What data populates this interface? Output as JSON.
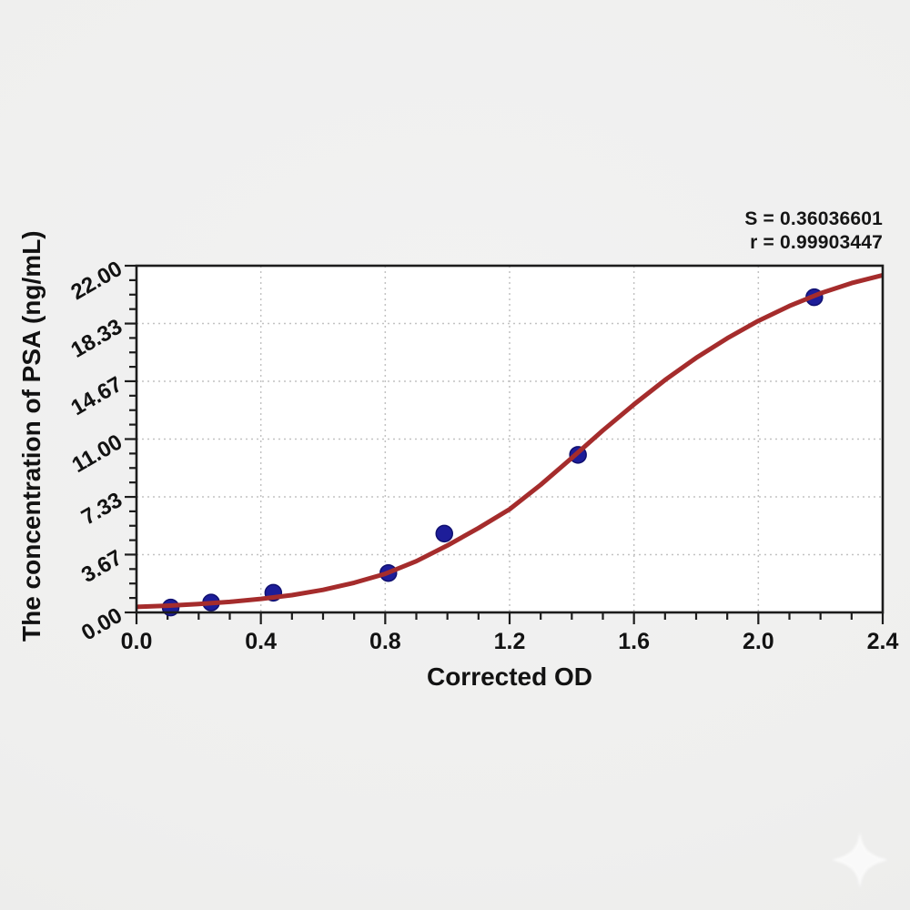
{
  "chart_data": {
    "type": "scatter",
    "title": "",
    "xlabel": "Corrected OD",
    "ylabel": "The concentration of PSA (ng/mL)",
    "xlim": [
      0.0,
      2.4
    ],
    "ylim": [
      0.0,
      22.0
    ],
    "grid": true,
    "legend_position": "none",
    "x_tick_labels": [
      "0.0",
      "0.4",
      "0.8",
      "1.2",
      "1.6",
      "2.0",
      "2.4"
    ],
    "x_tick_values": [
      0.0,
      0.4,
      0.8,
      1.2,
      1.6,
      2.0,
      2.4
    ],
    "y_tick_labels": [
      "0.00",
      "3.67",
      "7.33",
      "11.00",
      "14.67",
      "18.33",
      "22.00"
    ],
    "y_tick_values": [
      0.0,
      3.67,
      7.33,
      11.0,
      14.67,
      18.33,
      22.0
    ],
    "minor_ticks_between_majors": 3,
    "annotations": {
      "s_line": "S = 0.36036601",
      "r_line": "r = 0.99903447"
    },
    "series": [
      {
        "name": "standard points",
        "type": "scatter",
        "color": "#1d1d99",
        "edge_color": "#101070",
        "marker_size": 9,
        "x": [
          0.11,
          0.24,
          0.44,
          0.81,
          0.99,
          1.42,
          2.18
        ],
        "y": [
          0.31,
          0.63,
          1.25,
          2.5,
          5.0,
          10.0,
          20.0
        ]
      },
      {
        "name": "4PL standard curve",
        "type": "line",
        "color": "#a52c2c",
        "width": 5,
        "x": [
          0.0,
          0.1,
          0.2,
          0.3,
          0.4,
          0.5,
          0.6,
          0.7,
          0.8,
          0.9,
          1.0,
          1.1,
          1.2,
          1.3,
          1.4,
          1.5,
          1.6,
          1.7,
          1.8,
          1.9,
          2.0,
          2.1,
          2.2,
          2.3,
          2.4
        ],
        "y": [
          0.35,
          0.43,
          0.53,
          0.67,
          0.86,
          1.1,
          1.43,
          1.88,
          2.45,
          3.25,
          4.25,
          5.35,
          6.55,
          8.1,
          9.8,
          11.55,
          13.2,
          14.75,
          16.15,
          17.4,
          18.5,
          19.45,
          20.25,
          20.9,
          21.4
        ]
      }
    ],
    "style": {
      "plot_background": "#ffffff",
      "frame_color": "#1c1c1c",
      "grid_color": "#c2c2c2",
      "tick_label_color": "#121212",
      "annotation_color": "#151515",
      "watermark_color": "#ffffff"
    }
  }
}
